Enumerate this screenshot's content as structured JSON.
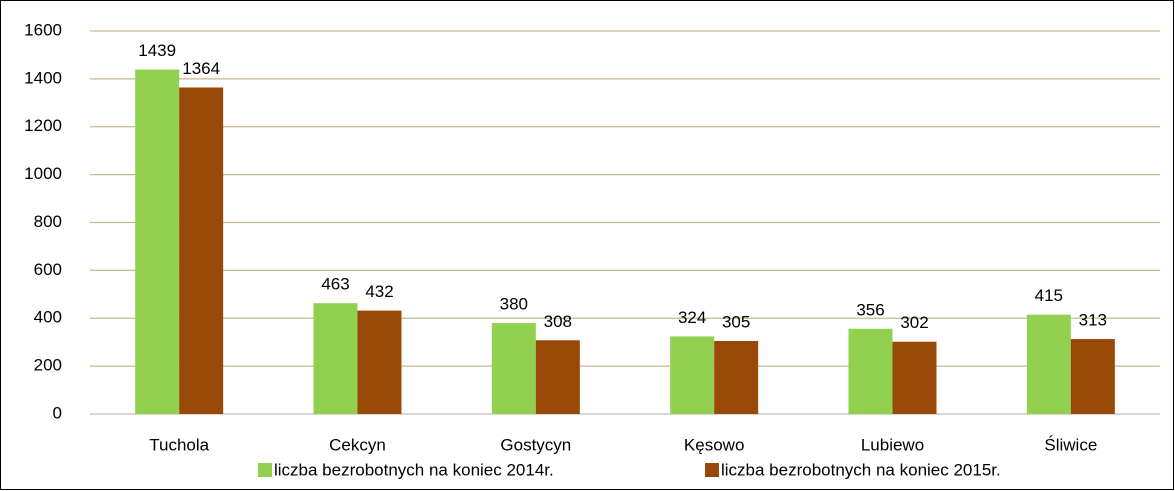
{
  "chart_data": {
    "type": "bar",
    "categories": [
      "Tuchola",
      "Cekcyn",
      "Gostycyn",
      "Kęsowo",
      "Lubiewo",
      "Śliwice"
    ],
    "series": [
      {
        "name": "liczba bezrobotnych na koniec 2014r.",
        "color": "#92d050",
        "values": [
          1439,
          463,
          380,
          324,
          356,
          415
        ]
      },
      {
        "name": "liczba bezrobotnych na koniec 2015r.",
        "color": "#984807",
        "values": [
          1364,
          432,
          308,
          305,
          302,
          313
        ]
      }
    ],
    "ylim": [
      0,
      1600
    ],
    "yticks": [
      0,
      200,
      400,
      600,
      800,
      1000,
      1200,
      1400,
      1600
    ],
    "grid": true,
    "legend": "bottom"
  }
}
